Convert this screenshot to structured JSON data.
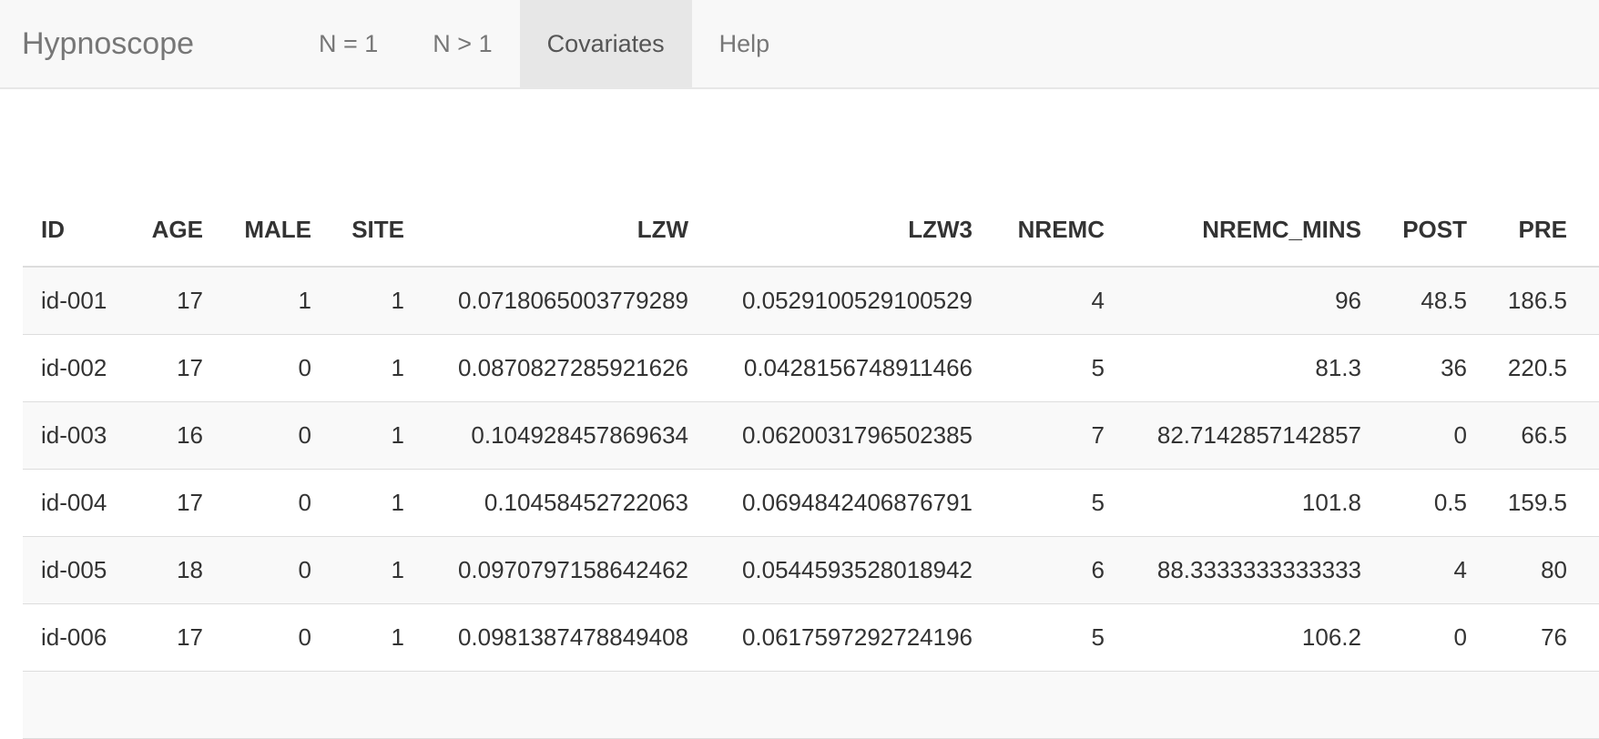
{
  "navbar": {
    "brand": "Hypnoscope",
    "items": [
      {
        "label": "N = 1"
      },
      {
        "label": "N > 1"
      },
      {
        "label": "Covariates",
        "active": true
      },
      {
        "label": "Help"
      }
    ]
  },
  "table": {
    "columns": [
      "ID",
      "AGE",
      "MALE",
      "SITE",
      "LZW",
      "LZW3",
      "NREMC",
      "NREMC_MINS",
      "POST",
      "PRE"
    ],
    "rows": [
      [
        "id-001",
        "17",
        "1",
        "1",
        "0.0718065003779289",
        "0.0529100529100529",
        "4",
        "96",
        "48.5",
        "186.5"
      ],
      [
        "id-002",
        "17",
        "0",
        "1",
        "0.0870827285921626",
        "0.0428156748911466",
        "5",
        "81.3",
        "36",
        "220.5"
      ],
      [
        "id-003",
        "16",
        "0",
        "1",
        "0.104928457869634",
        "0.0620031796502385",
        "7",
        "82.7142857142857",
        "0",
        "66.5"
      ],
      [
        "id-004",
        "17",
        "0",
        "1",
        "0.10458452722063",
        "0.0694842406876791",
        "5",
        "101.8",
        "0.5",
        "159.5"
      ],
      [
        "id-005",
        "18",
        "0",
        "1",
        "0.0970797158642462",
        "0.0544593528018942",
        "6",
        "88.3333333333333",
        "4",
        "80"
      ],
      [
        "id-006",
        "17",
        "0",
        "1",
        "0.0981387478849408",
        "0.0617597292724196",
        "5",
        "106.2",
        "0",
        "76"
      ]
    ]
  }
}
